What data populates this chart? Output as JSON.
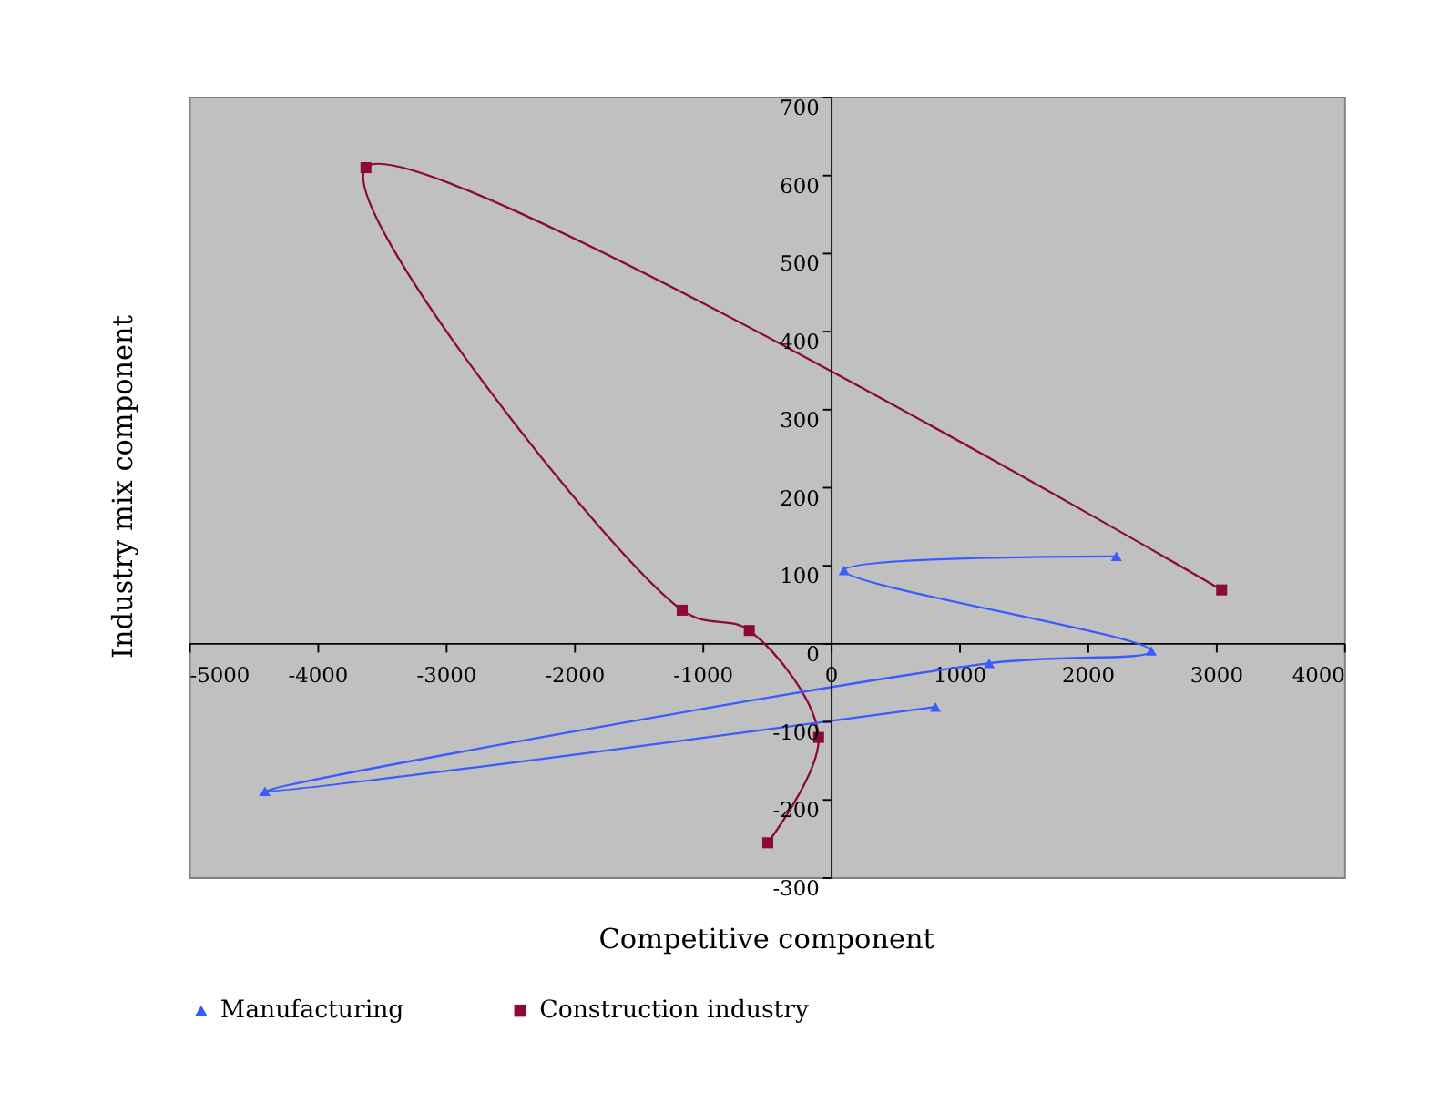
{
  "chart_data": {
    "type": "line",
    "xlabel": "Competitive component",
    "ylabel": "Industry mix component",
    "series": [
      {
        "name": "Manufacturing",
        "color": "#3a5cff",
        "marker": "triangle",
        "x": [
          815,
          -4409,
          1234,
          2496,
          104,
          2225
        ],
        "values": [
          -82,
          -190,
          -26,
          -10,
          93,
          111
        ]
      },
      {
        "name": "Construction industry",
        "color": "#8b0a3a",
        "marker": "square",
        "x": [
          3045,
          -3622,
          -1158,
          -635,
          -95,
          -491
        ],
        "values": [
          68,
          609,
          42,
          16,
          -121,
          -256
        ]
      }
    ],
    "xlim": [
      -5000,
      4000
    ],
    "xticks": [
      -5000,
      -4000,
      -3000,
      -2000,
      -1000,
      0,
      1000,
      2000,
      3000,
      4000
    ],
    "ylim": [
      -300,
      700
    ],
    "yticks": [
      -300,
      -200,
      -100,
      0,
      100,
      200,
      300,
      400,
      500,
      600,
      700
    ],
    "grid": false,
    "legend": "bottom"
  }
}
